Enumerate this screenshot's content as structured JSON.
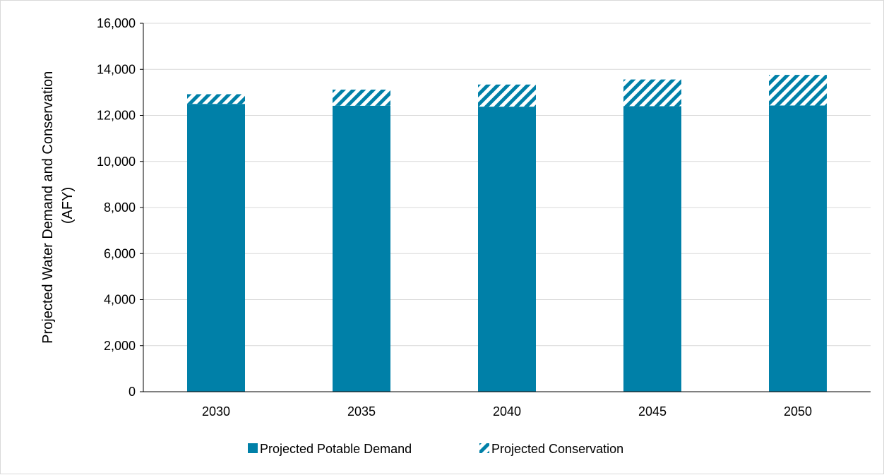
{
  "chart_data": {
    "type": "bar",
    "stacked": true,
    "categories": [
      "2030",
      "2035",
      "2040",
      "2045",
      "2050"
    ],
    "series": [
      {
        "name": "Projected Potable Demand",
        "values": [
          12500,
          12420,
          12380,
          12400,
          12430
        ],
        "color": "#0080a8",
        "fill": "solid"
      },
      {
        "name": "Projected Conservation",
        "values": [
          420,
          700,
          960,
          1160,
          1330
        ],
        "color": "#0080a8",
        "fill": "diagonal-hatch"
      }
    ],
    "title": "",
    "xlabel": "",
    "ylabel": "Projected Water Demand and Conservation (AFY)",
    "ylabel_lines": [
      "Projected Water Demand and Conservation",
      "(AFY)"
    ],
    "ylim": [
      0,
      16000
    ],
    "yticks": [
      0,
      2000,
      4000,
      6000,
      8000,
      10000,
      12000,
      14000,
      16000
    ],
    "ytick_labels": [
      "0",
      "2,000",
      "4,000",
      "6,000",
      "8,000",
      "10,000",
      "12,000",
      "14,000",
      "16,000"
    ],
    "grid": true,
    "legend_position": "bottom"
  }
}
